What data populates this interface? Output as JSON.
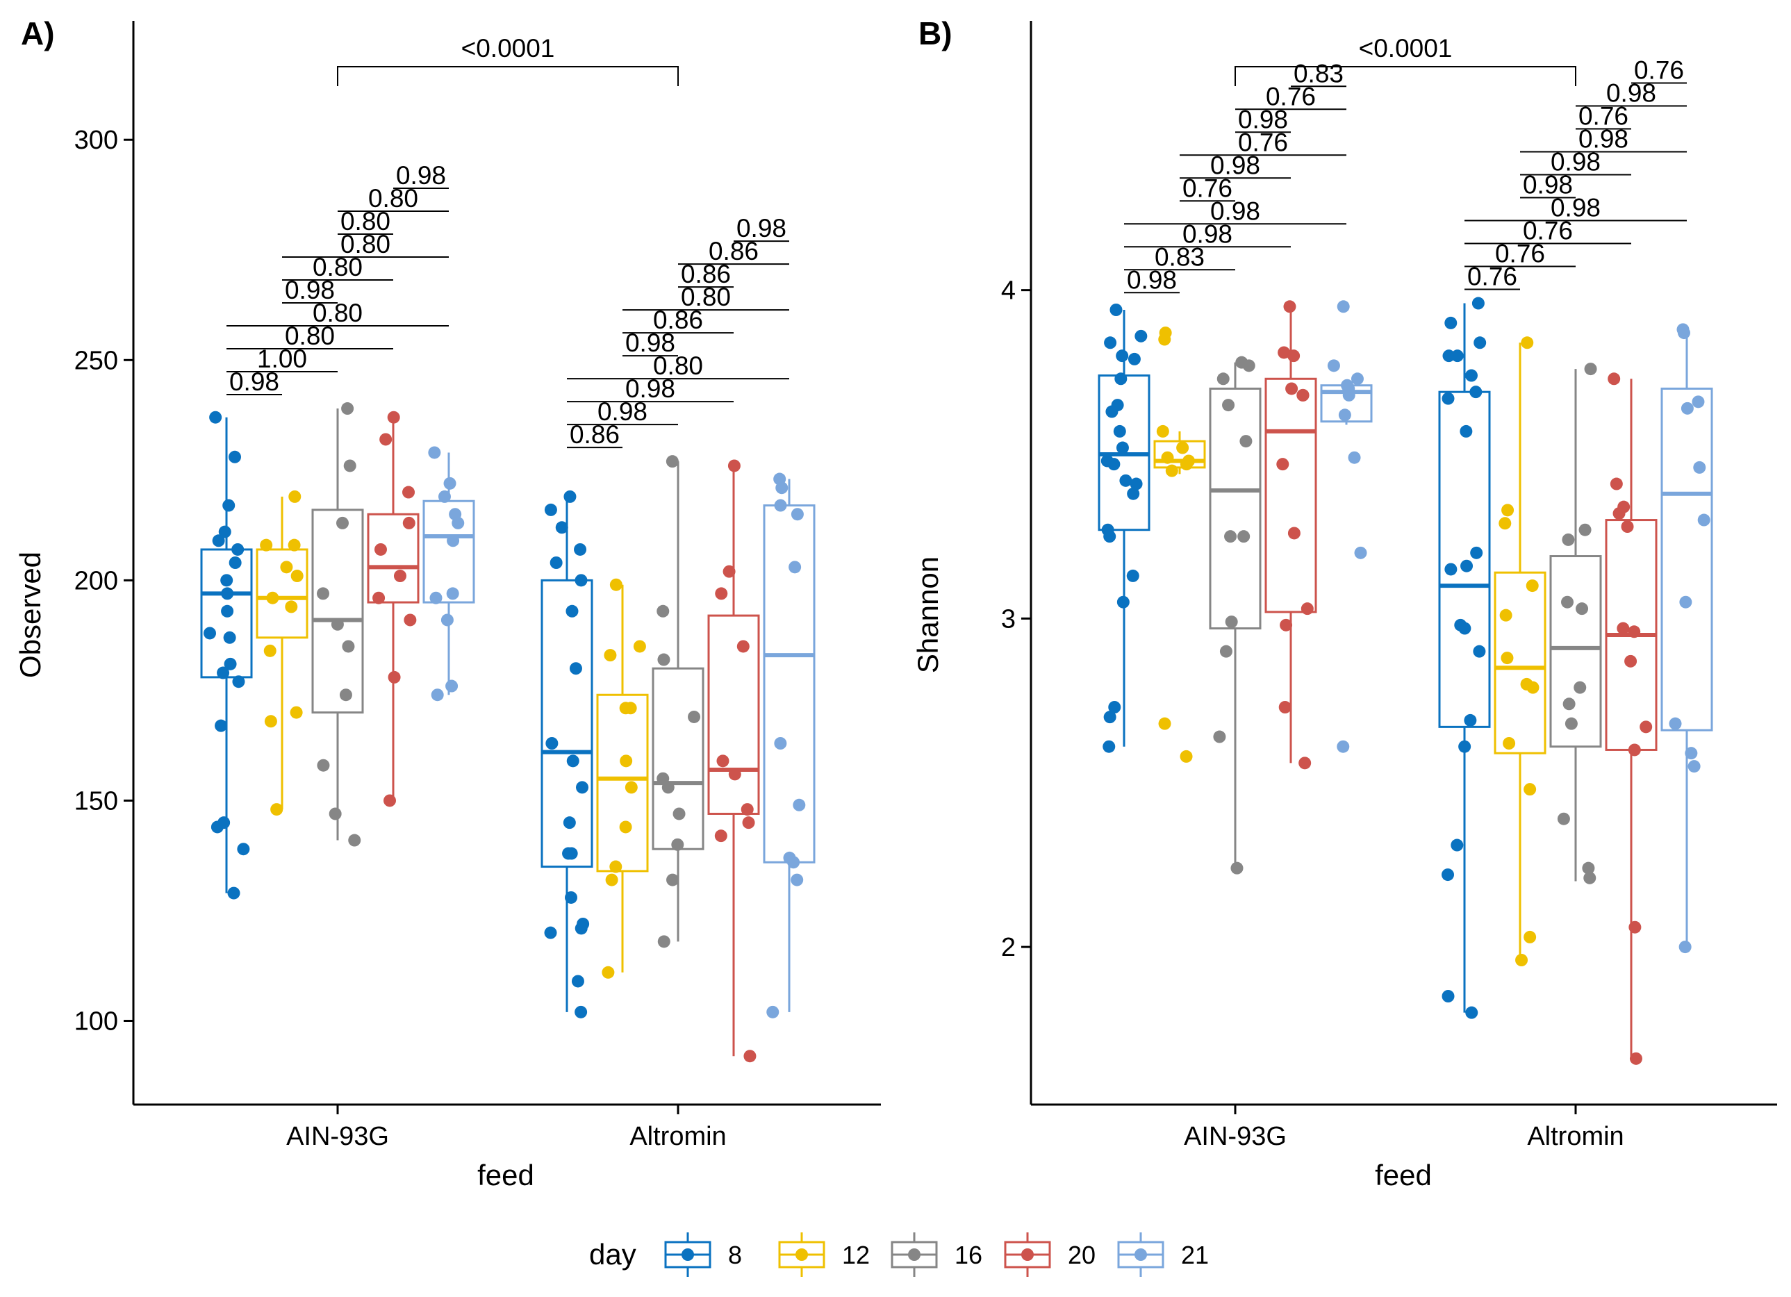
{
  "legend": {
    "title": "day",
    "levels": [
      "8",
      "12",
      "16",
      "20",
      "21"
    ],
    "colors": [
      "#0a72c0",
      "#efc000",
      "#868686",
      "#cd534c",
      "#7aa6dc"
    ]
  },
  "chart_data": [
    {
      "type": "boxplot",
      "panel_label": "A)",
      "xlabel": "feed",
      "ylabel": "Observed",
      "categories": [
        "AIN-93G",
        "Altromin"
      ],
      "ylim": [
        81,
        327
      ],
      "yticks": [
        "100",
        "150",
        "200",
        "250",
        "300"
      ],
      "group_comparison": "<0.0001",
      "pairwise_pvalues": {
        "AIN-93G": [
          "0.98",
          "1.00",
          "0.80",
          "0.80",
          "0.98",
          "0.80",
          "0.80",
          "0.80",
          "0.80",
          "0.98"
        ],
        "Altromin": [
          "0.86",
          "0.98",
          "0.98",
          "0.80",
          "0.98",
          "0.86",
          "0.80",
          "0.86",
          "0.86",
          "0.98"
        ]
      },
      "series": [
        {
          "name": "8",
          "box": {
            "AIN-93G": [
              129,
              178,
              197,
              207,
              237
            ],
            "Altromin": [
              102,
              135,
              161,
              200,
              219
            ]
          },
          "points": {
            "AIN-93G": [
              237,
              228,
              217,
              211,
              209,
              207,
              204,
              200,
              197,
              193,
              188,
              187,
              181,
              179,
              177,
              167,
              145,
              144,
              139,
              129
            ],
            "Altromin": [
              219,
              216,
              212,
              207,
              204,
              200,
              193,
              180,
              163,
              159,
              153,
              145,
              138,
              138,
              128,
              122,
              121,
              120,
              109,
              102
            ]
          }
        },
        {
          "name": "12",
          "box": {
            "AIN-93G": [
              148,
              187,
              196,
              207,
              219
            ],
            "Altromin": [
              111,
              134,
              155,
              174,
              199
            ]
          },
          "points": {
            "AIN-93G": [
              219,
              208,
              208,
              203,
              201,
              196,
              194,
              184,
              170,
              168,
              148
            ],
            "Altromin": [
              199,
              183,
              185,
              171,
              171,
              159,
              153,
              144,
              135,
              132,
              111
            ]
          }
        },
        {
          "name": "16",
          "box": {
            "AIN-93G": [
              141,
              170,
              191,
              216,
              239
            ],
            "Altromin": [
              118,
              139,
              154,
              180,
              227
            ]
          },
          "points": {
            "AIN-93G": [
              239,
              226,
              213,
              197,
              190,
              185,
              174,
              158,
              147,
              141
            ],
            "Altromin": [
              227,
              193,
              182,
              169,
              155,
              153,
              147,
              140,
              132,
              118
            ]
          }
        },
        {
          "name": "20",
          "box": {
            "AIN-93G": [
              150,
              195,
              203,
              215,
              237
            ],
            "Altromin": [
              92,
              147,
              157,
              192,
              226
            ]
          },
          "points": {
            "AIN-93G": [
              237,
              232,
              220,
              213,
              207,
              201,
              196,
              191,
              178,
              150
            ],
            "Altromin": [
              226,
              202,
              197,
              185,
              159,
              156,
              148,
              145,
              142,
              92
            ]
          }
        },
        {
          "name": "21",
          "box": {
            "AIN-93G": [
              174,
              195,
              210,
              218,
              229
            ],
            "Altromin": [
              102,
              136,
              183,
              217,
              223
            ]
          },
          "points": {
            "AIN-93G": [
              229,
              222,
              219,
              215,
              213,
              209,
              197,
              196,
              191,
              176,
              174
            ],
            "Altromin": [
              223,
              221,
              217,
              215,
              203,
              163,
              149,
              137,
              136,
              132,
              102
            ]
          }
        }
      ]
    },
    {
      "type": "boxplot",
      "panel_label": "B)",
      "xlabel": "feed",
      "ylabel": "Shannon",
      "categories": [
        "AIN-93G",
        "Altromin"
      ],
      "ylim": [
        1.52,
        4.82
      ],
      "yticks": [
        "2",
        "3",
        "4"
      ],
      "group_comparison": "<0.0001",
      "pairwise_pvalues": {
        "AIN-93G": [
          "0.98",
          "0.83",
          "0.98",
          "0.98",
          "0.76",
          "0.98",
          "0.76",
          "0.98",
          "0.76",
          "0.83"
        ],
        "Altromin": [
          "0.76",
          "0.76",
          "0.76",
          "0.98",
          "0.98",
          "0.98",
          "0.98",
          "0.76",
          "0.98",
          "0.76"
        ]
      },
      "series": [
        {
          "name": "8",
          "box": {
            "AIN-93G": [
              2.61,
              3.27,
              3.5,
              3.74,
              3.94
            ],
            "Altromin": [
              1.8,
              2.67,
              3.1,
              3.69,
              3.96
            ]
          },
          "points": {
            "AIN-93G": [
              3.94,
              3.86,
              3.84,
              3.8,
              3.79,
              3.73,
              3.65,
              3.63,
              3.57,
              3.52,
              3.48,
              3.47,
              3.42,
              3.41,
              3.38,
              3.27,
              3.25,
              3.13,
              3.05,
              2.73,
              2.7,
              2.61
            ],
            "Altromin": [
              3.96,
              3.9,
              3.84,
              3.8,
              3.8,
              3.74,
              3.69,
              3.67,
              3.57,
              3.2,
              3.16,
              3.15,
              2.98,
              2.97,
              2.9,
              2.69,
              2.61,
              2.31,
              2.22,
              1.85,
              1.8
            ]
          }
        },
        {
          "name": "12",
          "box": {
            "AIN-93G": [
              3.44,
              3.46,
              3.48,
              3.54,
              3.57
            ],
            "Altromin": [
              1.96,
              2.59,
              2.85,
              3.14,
              3.84
            ]
          },
          "points": {
            "AIN-93G": [
              3.87,
              3.85,
              3.57,
              3.52,
              3.49,
              3.48,
              3.47,
              3.45,
              2.68,
              2.58
            ],
            "Altromin": [
              3.84,
              3.33,
              3.29,
              3.1,
              3.01,
              2.88,
              2.8,
              2.79,
              2.62,
              2.48,
              2.03,
              1.96
            ]
          }
        },
        {
          "name": "16",
          "box": {
            "AIN-93G": [
              2.24,
              2.97,
              3.39,
              3.7,
              3.78
            ],
            "Altromin": [
              2.2,
              2.61,
              2.91,
              3.19,
              3.76
            ]
          },
          "points": {
            "AIN-93G": [
              3.78,
              3.77,
              3.73,
              3.65,
              3.54,
              3.25,
              3.25,
              2.99,
              2.9,
              2.64,
              2.24
            ],
            "Altromin": [
              3.76,
              3.27,
              3.24,
              3.05,
              3.03,
              2.79,
              2.74,
              2.68,
              2.39,
              2.24,
              2.21
            ]
          }
        },
        {
          "name": "20",
          "box": {
            "AIN-93G": [
              2.56,
              3.02,
              3.57,
              3.73,
              3.95
            ],
            "Altromin": [
              1.66,
              2.6,
              2.95,
              3.3,
              3.73
            ]
          },
          "points": {
            "AIN-93G": [
              3.95,
              3.81,
              3.8,
              3.7,
              3.68,
              3.68,
              3.47,
              3.26,
              3.03,
              2.98,
              2.73,
              2.56
            ],
            "Altromin": [
              3.73,
              3.41,
              3.34,
              3.32,
              3.28,
              2.97,
              2.96,
              2.87,
              2.67,
              2.6,
              2.06,
              1.66
            ]
          }
        },
        {
          "name": "21",
          "box": {
            "AIN-93G": [
              3.59,
              3.6,
              3.69,
              3.71,
              3.71
            ],
            "Altromin": [
              2,
              2.66,
              3.38,
              3.7,
              3.88
            ]
          },
          "points": {
            "AIN-93G": [
              3.95,
              3.77,
              3.73,
              3.71,
              3.7,
              3.68,
              3.62,
              3.49,
              3.2,
              2.61
            ],
            "Altromin": [
              3.88,
              3.87,
              3.66,
              3.64,
              3.46,
              3.3,
              3.05,
              2.68,
              2.59,
              2.55,
              2
            ]
          }
        }
      ]
    }
  ]
}
